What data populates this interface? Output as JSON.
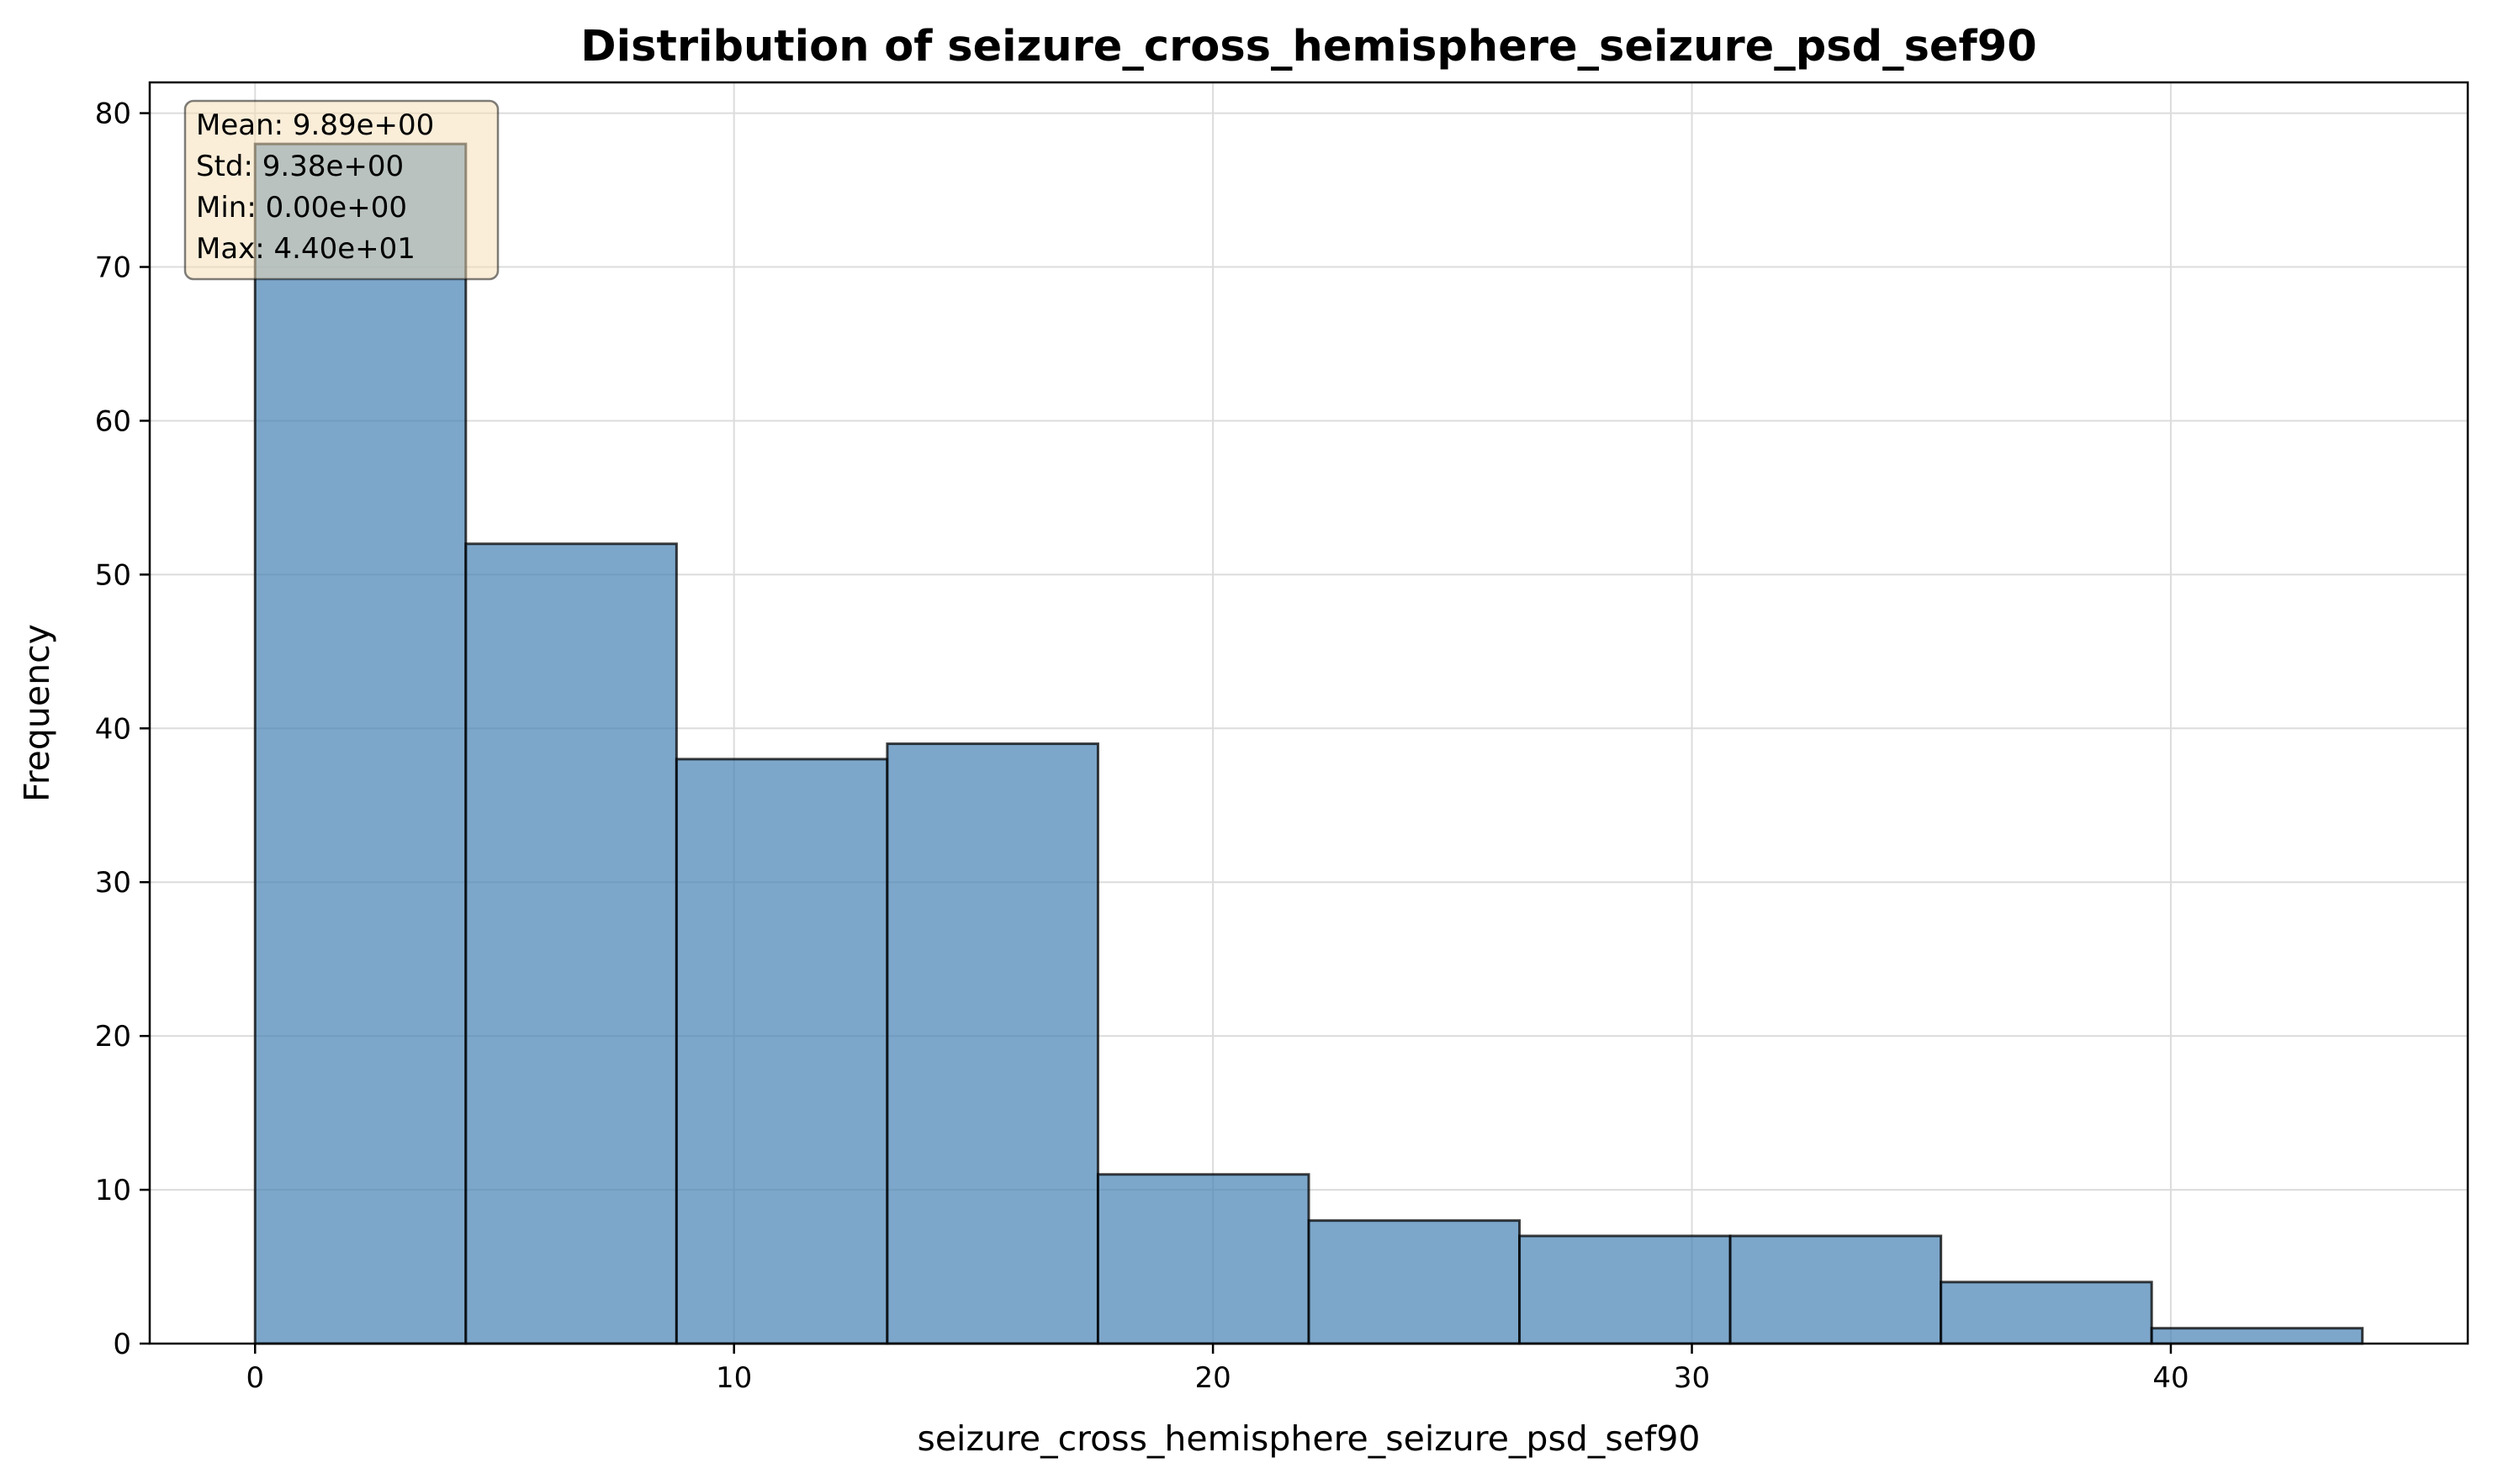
{
  "chart_data": {
    "type": "bar",
    "title": "Distribution of seizure_cross_hemisphere_seizure_psd_sef90",
    "xlabel": "seizure_cross_hemisphere_seizure_psd_sef90",
    "ylabel": "Frequency",
    "xlim": [
      -2.2,
      46.2
    ],
    "ylim": [
      0,
      82
    ],
    "xticks": [
      0,
      10,
      20,
      30,
      40
    ],
    "yticks": [
      0,
      10,
      20,
      30,
      40,
      50,
      60,
      70,
      80
    ],
    "grid": true,
    "bin_edges": [
      0,
      4.4,
      8.8,
      13.2,
      17.6,
      22.0,
      26.4,
      30.8,
      35.2,
      39.6,
      44.0
    ],
    "counts": [
      78,
      52,
      38,
      39,
      11,
      8,
      7,
      7,
      4,
      1
    ],
    "bar_color": "#4682b4",
    "bar_edge_color": "#000000",
    "stats_box": {
      "lines": [
        "Mean: 9.89e+00",
        "Std: 9.38e+00",
        "Min: 0.00e+00",
        "Max: 4.40e+01"
      ],
      "background": "#f5deb3",
      "placement": "top-left"
    }
  }
}
